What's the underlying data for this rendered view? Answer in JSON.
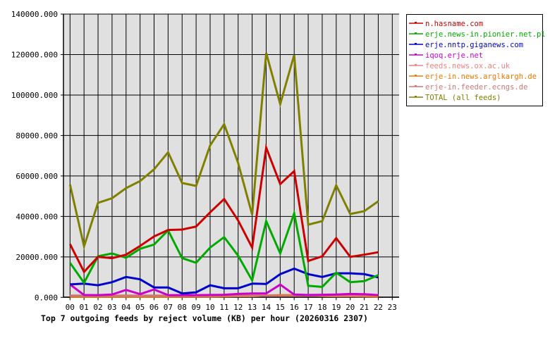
{
  "chart_data": {
    "type": "line",
    "title": "Top 7 outgoing feeds by reject volume (KB) per hour (20260316 2307)",
    "xlabel": "",
    "ylabel": "",
    "ylim": [
      0,
      140000
    ],
    "yticks": [
      "0.000",
      "20000.000",
      "40000.000",
      "60000.000",
      "80000.000",
      "100000.000",
      "120000.000",
      "140000.000"
    ],
    "ytick_values": [
      0,
      20000,
      40000,
      60000,
      80000,
      100000,
      120000,
      140000
    ],
    "categories": [
      "00",
      "01",
      "02",
      "03",
      "04",
      "05",
      "06",
      "07",
      "08",
      "09",
      "10",
      "11",
      "12",
      "13",
      "14",
      "15",
      "16",
      "17",
      "18",
      "19",
      "20",
      "21",
      "22",
      "23"
    ],
    "grid": true,
    "legend_position": "right",
    "series": [
      {
        "name": "n.hasname.com",
        "color": "#cc0000",
        "values": [
          26300,
          12600,
          20000,
          19400,
          21100,
          25400,
          30100,
          33300,
          33500,
          35000,
          42000,
          48600,
          38000,
          24600,
          74000,
          56000,
          62400,
          18000,
          20300,
          29300,
          20000,
          21100,
          22300
        ]
      },
      {
        "name": "erje.news-in.pionier.net.pl",
        "color": "#00aa00",
        "values": [
          17100,
          7200,
          20300,
          21700,
          19600,
          24000,
          26100,
          33100,
          19400,
          17100,
          24600,
          29800,
          20600,
          8400,
          37700,
          21700,
          41500,
          5700,
          5200,
          12200,
          7500,
          8000,
          11000
        ]
      },
      {
        "name": "erje.nntp.giganews.com",
        "color": "#0000cc",
        "values": [
          6400,
          6800,
          6000,
          7500,
          10100,
          8900,
          4900,
          4900,
          1950,
          2500,
          6000,
          4500,
          4500,
          6800,
          6600,
          11500,
          14200,
          11500,
          10100,
          11900,
          11900,
          11500,
          9900
        ]
      },
      {
        "name": "iqoq.erje.net",
        "color": "#cc00cc",
        "values": [
          6400,
          1150,
          1100,
          1400,
          3700,
          1600,
          3900,
          1100,
          1100,
          1100,
          1200,
          1300,
          1700,
          1950,
          1950,
          6300,
          1400,
          1200,
          1300,
          1400,
          1700,
          1600,
          1100
        ]
      },
      {
        "name": "feeds.news.ox.ac.uk",
        "color": "#f08080",
        "values": [
          900,
          900,
          900,
          900,
          900,
          900,
          900,
          900,
          900,
          900,
          900,
          900,
          900,
          900,
          900,
          900,
          900,
          900,
          900,
          900,
          900,
          900,
          900
        ]
      },
      {
        "name": "erje-in.news.arglkargh.de",
        "color": "#ee7700",
        "values": [
          300,
          300,
          300,
          300,
          300,
          300,
          300,
          300,
          400,
          400,
          400,
          500,
          600,
          600,
          900,
          1100,
          1100,
          900,
          700,
          600,
          600,
          500,
          400
        ]
      },
      {
        "name": "erje-in.feeder.ecngs.de",
        "color": "#cc7777",
        "values": [
          800,
          800,
          800,
          800,
          800,
          800,
          800,
          800,
          800,
          800,
          800,
          800,
          800,
          800,
          800,
          800,
          800,
          800,
          800,
          800,
          800,
          900,
          1000
        ]
      },
      {
        "name": "TOTAL (all feeds)",
        "color": "#808000",
        "values": [
          55700,
          25200,
          46700,
          49000,
          54000,
          57500,
          63300,
          71700,
          56500,
          55100,
          75100,
          85600,
          66400,
          40900,
          120800,
          95500,
          119800,
          35900,
          37700,
          55400,
          41200,
          42600,
          47500
        ]
      }
    ]
  }
}
